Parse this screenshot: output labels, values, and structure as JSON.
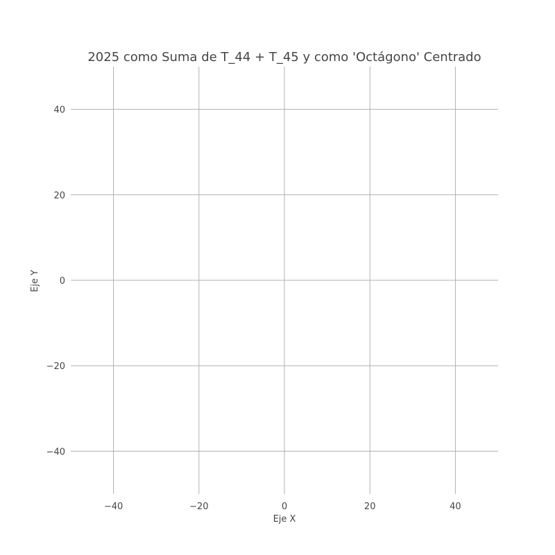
{
  "chart_data": {
    "type": "scatter",
    "title": "2025 como Suma de T_44 + T_45 y como 'Octágono' Centrado",
    "xlabel": "Eje X",
    "ylabel": "Eje Y",
    "xlim": [
      -50,
      50
    ],
    "ylim": [
      -50,
      50
    ],
    "x_ticks": [
      -40,
      -20,
      0,
      20,
      40
    ],
    "y_ticks": [
      -40,
      -20,
      0,
      20,
      40
    ],
    "x_tick_labels": [
      "−40",
      "−20",
      "0",
      "20",
      "40"
    ],
    "y_tick_labels": [
      "−40",
      "−20",
      "0",
      "20",
      "40"
    ],
    "grid": true,
    "series": [],
    "colors": {
      "grid": "#b0b0b0",
      "text": "#444444",
      "background": "#ffffff"
    }
  }
}
